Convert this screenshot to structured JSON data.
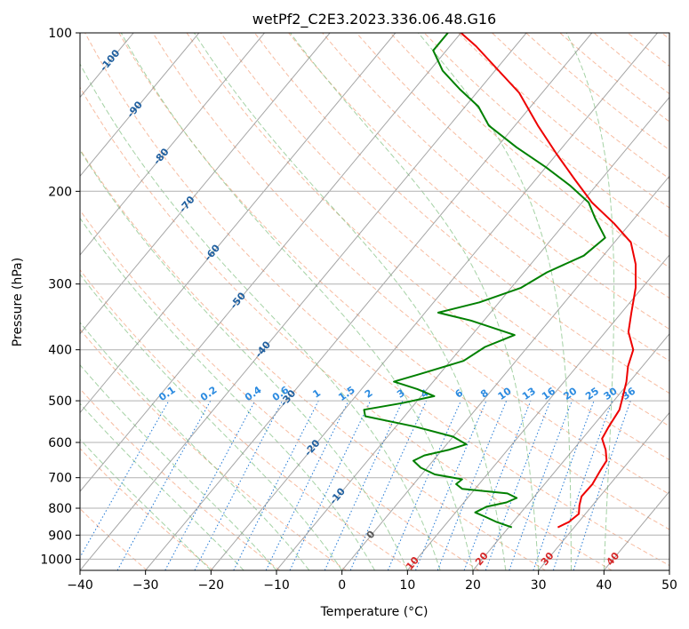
{
  "chart_data": {
    "type": "line",
    "title": "wetPf2_C2E3.2023.336.06.48.G16",
    "xlabel": "Temperature (°C)",
    "ylabel": "Pressure (hPa)",
    "xlim": [
      -40,
      50
    ],
    "ylim": [
      1050,
      100
    ],
    "x_ticks": [
      -40,
      -30,
      -20,
      -10,
      0,
      10,
      20,
      30,
      40,
      50
    ],
    "y_ticks": [
      100,
      200,
      300,
      400,
      500,
      600,
      700,
      800,
      900,
      1000
    ],
    "grid": true,
    "colors": {
      "temperature": "#ee0000",
      "dewpoint": "#008000",
      "dry_adiabat": "#f4a582",
      "moist_adiabat": "#7fbf7f",
      "mixing_ratio": "#1f77d4",
      "isotherm": "#888888",
      "isotherm_label": "#1f5f9f",
      "isotherm_label_warm": "#d62728"
    },
    "series": [
      {
        "name": "temperature",
        "points": [
          [
            27.5,
            870
          ],
          [
            28.5,
            850
          ],
          [
            29.0,
            820
          ],
          [
            28.0,
            790
          ],
          [
            27.2,
            760
          ],
          [
            27.3,
            720
          ],
          [
            26.8,
            680
          ],
          [
            26.5,
            650
          ],
          [
            25.0,
            620
          ],
          [
            23.0,
            590
          ],
          [
            22.5,
            560
          ],
          [
            22.0,
            520
          ],
          [
            20.8,
            490
          ],
          [
            19.5,
            460
          ],
          [
            17.8,
            430
          ],
          [
            16.5,
            400
          ],
          [
            13.5,
            370
          ],
          [
            11.5,
            340
          ],
          [
            9.0,
            305
          ],
          [
            6.0,
            275
          ],
          [
            2.5,
            250
          ],
          [
            -2.5,
            230
          ],
          [
            -8.5,
            210
          ],
          [
            -14.0,
            190
          ],
          [
            -20.0,
            170
          ],
          [
            -26.5,
            150
          ],
          [
            -33.5,
            130
          ],
          [
            -41.0,
            115
          ],
          [
            -46.0,
            106
          ],
          [
            -50.0,
            100
          ]
        ]
      },
      {
        "name": "dewpoint",
        "points": [
          [
            20.5,
            870
          ],
          [
            17.5,
            850
          ],
          [
            15.0,
            830
          ],
          [
            13.0,
            815
          ],
          [
            14.0,
            795
          ],
          [
            16.5,
            780
          ],
          [
            17.5,
            765
          ],
          [
            15.5,
            750
          ],
          [
            8.0,
            735
          ],
          [
            6.5,
            720
          ],
          [
            6.8,
            705
          ],
          [
            2.0,
            690
          ],
          [
            -1.0,
            670
          ],
          [
            -3.0,
            650
          ],
          [
            -2.0,
            635
          ],
          [
            1.0,
            620
          ],
          [
            3.0,
            605
          ],
          [
            0.0,
            585
          ],
          [
            -7.0,
            560
          ],
          [
            -16.0,
            535
          ],
          [
            -17.0,
            520
          ],
          [
            -12.0,
            505
          ],
          [
            -8.0,
            490
          ],
          [
            -11.5,
            475
          ],
          [
            -16.0,
            460
          ],
          [
            -13.0,
            445
          ],
          [
            -8.0,
            420
          ],
          [
            -6.5,
            395
          ],
          [
            -3.5,
            375
          ],
          [
            -12.0,
            352
          ],
          [
            -18.0,
            340
          ],
          [
            -13.0,
            325
          ],
          [
            -8.5,
            305
          ],
          [
            -6.5,
            285
          ],
          [
            -3.0,
            265
          ],
          [
            -2.0,
            245
          ],
          [
            -6.0,
            225
          ],
          [
            -9.0,
            210
          ],
          [
            -14.0,
            195
          ],
          [
            -20.0,
            180
          ],
          [
            -27.0,
            165
          ],
          [
            -34.0,
            150
          ],
          [
            -38.0,
            138
          ],
          [
            -43.0,
            128
          ],
          [
            -48.0,
            118
          ],
          [
            -52.0,
            108
          ],
          [
            -52.0,
            100
          ]
        ]
      }
    ],
    "mixing_ratio_labels": [
      "0.1",
      "0.2",
      "0.4",
      "0.6",
      "1",
      "1.5",
      "2",
      "3",
      "4",
      "6",
      "8",
      "10",
      "13",
      "16",
      "20",
      "25",
      "30",
      "36"
    ],
    "isotherm_labels": [
      "-100",
      "-90",
      "-80",
      "-70",
      "-60",
      "-50",
      "-40",
      "-30",
      "-20",
      "-10",
      "0",
      "10",
      "20",
      "30",
      "40"
    ]
  }
}
